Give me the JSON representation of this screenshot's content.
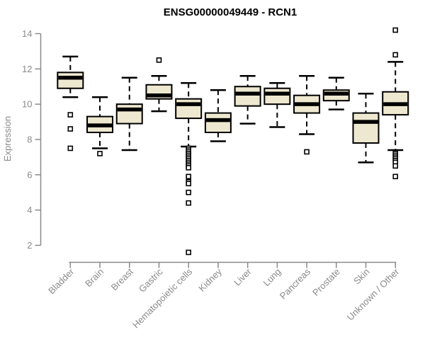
{
  "page": {
    "background": "#ffffff"
  },
  "chart_data": {
    "type": "boxplot",
    "title": "ENSG00000049449 - RCN1",
    "xlabel": "",
    "ylabel": "Expression",
    "ylim": [
      2,
      14
    ],
    "yticks": [
      2,
      4,
      6,
      8,
      10,
      12,
      14
    ],
    "grid": false,
    "legend": false,
    "categories": [
      "Bladder",
      "Brain",
      "Breast",
      "Gastric",
      "Hematopoietic cells",
      "Kidney",
      "Liver",
      "Lung",
      "Pancreas",
      "Prostate",
      "Skin",
      "Unknown / Other"
    ],
    "boxes": [
      {
        "category": "Bladder",
        "whisker_low": 10.4,
        "q1": 10.9,
        "median": 11.5,
        "q3": 11.8,
        "whisker_high": 12.7,
        "outliers": [
          9.4,
          8.6,
          7.5
        ]
      },
      {
        "category": "Brain",
        "whisker_low": 7.5,
        "q1": 8.4,
        "median": 8.8,
        "q3": 9.3,
        "whisker_high": 10.4,
        "outliers": [
          7.2
        ]
      },
      {
        "category": "Breast",
        "whisker_low": 7.4,
        "q1": 8.9,
        "median": 9.7,
        "q3": 10.0,
        "whisker_high": 11.5,
        "outliers": []
      },
      {
        "category": "Gastric",
        "whisker_low": 9.6,
        "q1": 10.3,
        "median": 10.5,
        "q3": 11.1,
        "whisker_high": 11.6,
        "outliers": [
          12.5
        ]
      },
      {
        "category": "Hematopoietic cells",
        "whisker_low": 7.6,
        "q1": 9.2,
        "median": 10.0,
        "q3": 10.3,
        "whisker_high": 11.2,
        "outliers": [
          7.5,
          7.4,
          7.3,
          7.2,
          7.1,
          7.0,
          6.9,
          6.8,
          6.7,
          6.6,
          6.5,
          6.4,
          5.9,
          5.6,
          5.5,
          5.0,
          4.4,
          1.6
        ]
      },
      {
        "category": "Kidney",
        "whisker_low": 7.9,
        "q1": 8.4,
        "median": 9.1,
        "q3": 9.5,
        "whisker_high": 10.8,
        "outliers": []
      },
      {
        "category": "Liver",
        "whisker_low": 8.9,
        "q1": 9.9,
        "median": 10.6,
        "q3": 11.0,
        "whisker_high": 11.6,
        "outliers": []
      },
      {
        "category": "Lung",
        "whisker_low": 8.7,
        "q1": 10.0,
        "median": 10.6,
        "q3": 10.9,
        "whisker_high": 11.2,
        "outliers": []
      },
      {
        "category": "Pancreas",
        "whisker_low": 8.3,
        "q1": 9.5,
        "median": 10.0,
        "q3": 10.5,
        "whisker_high": 11.6,
        "outliers": [
          7.3
        ]
      },
      {
        "category": "Prostate",
        "whisker_low": 9.7,
        "q1": 10.2,
        "median": 10.6,
        "q3": 10.8,
        "whisker_high": 11.5,
        "outliers": []
      },
      {
        "category": "Skin",
        "whisker_low": 6.7,
        "q1": 7.8,
        "median": 9.0,
        "q3": 9.5,
        "whisker_high": 10.6,
        "outliers": []
      },
      {
        "category": "Unknown / Other",
        "whisker_low": 7.4,
        "q1": 9.4,
        "median": 10.0,
        "q3": 10.7,
        "whisker_high": 12.4,
        "outliers": [
          14.2,
          12.8,
          7.2,
          7.1,
          7.0,
          6.9,
          6.8,
          6.7,
          6.5,
          5.9
        ]
      }
    ],
    "colors": {
      "box_fill": "#EEE8D0",
      "box_stroke": "#000000",
      "median": "#000000",
      "whisker": "#000000",
      "outlier_stroke": "#000000",
      "outlier_fill": "#ffffff",
      "axis": "#8A8A8A",
      "title": "#000000"
    }
  }
}
